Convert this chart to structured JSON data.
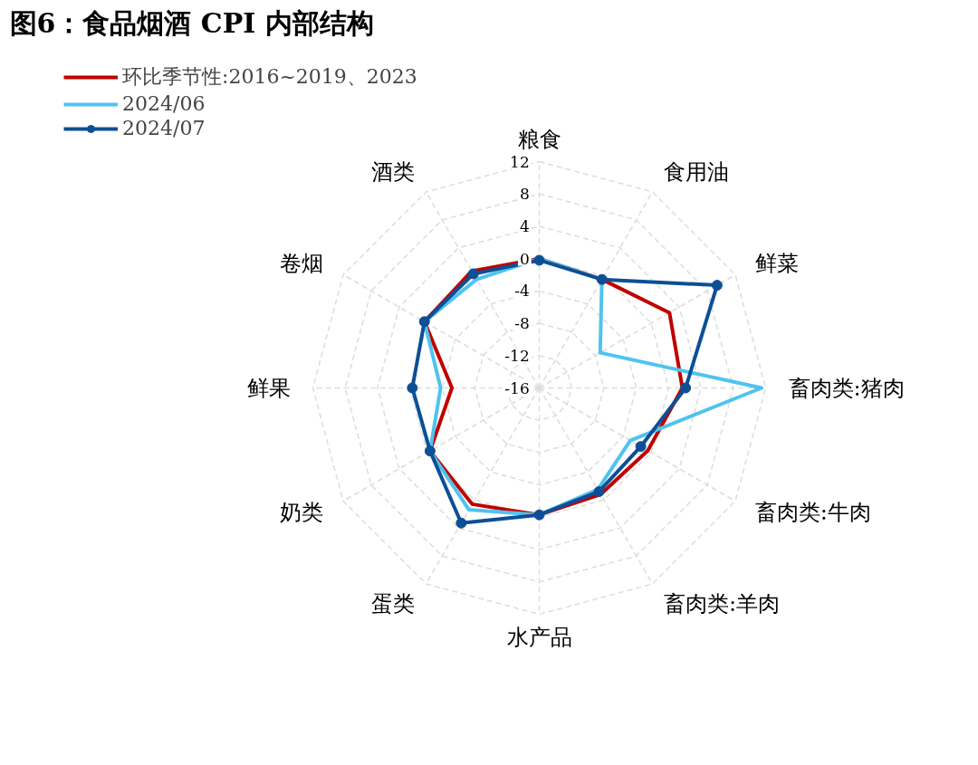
{
  "chart_data": {
    "type": "radar",
    "title": "图6：食品烟酒 CPI 内部结构",
    "categories": [
      "粮食",
      "食用油",
      "鲜菜",
      "畜肉类:猪肉",
      "畜肉类:牛肉",
      "畜肉类:羊肉",
      "水产品",
      "蛋类",
      "奶类",
      "鲜果",
      "卷烟",
      "酒类"
    ],
    "series": [
      {
        "name": "环比季节性:2016~2019、2023",
        "color": "#c00000",
        "marker": "none",
        "values": [
          0,
          -0.5,
          2.6,
          1.7,
          -0.5,
          -0.8,
          -0.3,
          0.6,
          -0.4,
          -5.2,
          0.4,
          0.7
        ]
      },
      {
        "name": "2024/06",
        "color": "#4fc3f0",
        "marker": "none",
        "values": [
          0,
          -0.5,
          -7.3,
          11.5,
          -3.0,
          -1.5,
          -0.3,
          1.4,
          -0.4,
          -3.8,
          0.4,
          -0.5
        ]
      },
      {
        "name": "2024/07",
        "color": "#0d4f96",
        "marker": "circle",
        "values": [
          -0.2,
          -0.5,
          9.4,
          2.1,
          -1.5,
          -1.2,
          -0.3,
          3.3,
          -0.4,
          -0.3,
          0.4,
          0.3
        ]
      }
    ],
    "ylim": [
      -16,
      12
    ],
    "yticks": [
      -16,
      -12,
      -8,
      -4,
      0,
      4,
      8,
      12
    ],
    "grid": true,
    "legend": "top left"
  }
}
